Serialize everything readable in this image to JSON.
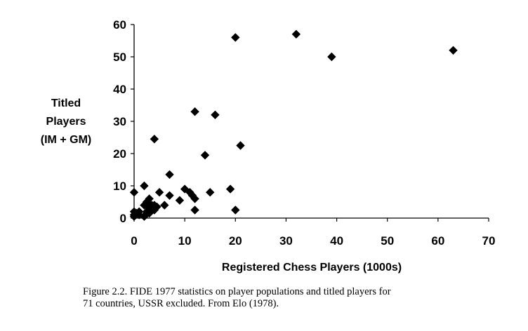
{
  "chart_data": {
    "type": "scatter",
    "title": "",
    "xlabel": "Registered Chess Players (1000s)",
    "ylabel_lines": [
      "Titled",
      "Players",
      "(IM + GM)"
    ],
    "xlim": [
      0,
      70
    ],
    "ylim": [
      0,
      60
    ],
    "x_ticks": [
      0,
      10,
      20,
      30,
      40,
      50,
      60,
      70
    ],
    "y_ticks": [
      0,
      10,
      20,
      30,
      40,
      50,
      60
    ],
    "grid": false,
    "legend": "none",
    "marker": "diamond",
    "marker_color": "#000000",
    "points": [
      [
        0,
        8
      ],
      [
        2,
        10
      ],
      [
        0,
        2
      ],
      [
        0,
        1
      ],
      [
        0,
        0.5
      ],
      [
        0.5,
        1.5
      ],
      [
        1,
        2
      ],
      [
        1,
        1
      ],
      [
        2,
        0.5
      ],
      [
        2,
        4
      ],
      [
        2.5,
        5
      ],
      [
        3,
        6
      ],
      [
        3,
        4
      ],
      [
        3,
        2
      ],
      [
        3.5,
        3
      ],
      [
        4,
        4
      ],
      [
        4,
        2.5
      ],
      [
        2.5,
        2
      ],
      [
        2.5,
        1.5
      ],
      [
        3,
        1.5
      ],
      [
        3,
        3
      ],
      [
        3.5,
        4
      ],
      [
        4.5,
        3.5
      ],
      [
        4,
        24.5
      ],
      [
        5,
        8
      ],
      [
        6,
        4
      ],
      [
        7,
        13.5
      ],
      [
        7,
        7
      ],
      [
        9,
        5.5
      ],
      [
        10,
        9
      ],
      [
        11,
        8
      ],
      [
        11.5,
        7
      ],
      [
        12,
        6
      ],
      [
        12,
        2.5
      ],
      [
        12,
        33
      ],
      [
        14,
        19.5
      ],
      [
        15,
        8
      ],
      [
        16,
        32
      ],
      [
        19,
        9
      ],
      [
        20,
        2.5
      ],
      [
        20,
        56
      ],
      [
        21,
        22.5
      ],
      [
        32,
        57
      ],
      [
        39,
        50
      ],
      [
        63,
        52
      ]
    ]
  },
  "caption": {
    "line1": "Figure 2.2. FIDE 1977 statistics on player populations and titled players for",
    "line2": "71 countries, USSR excluded. From Elo (1978)."
  }
}
